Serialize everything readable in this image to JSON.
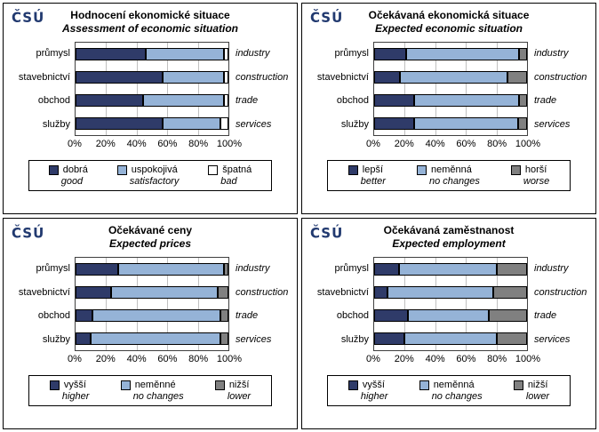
{
  "brand": "ČSÚ",
  "colors": {
    "dark_blue": "#2F3B69",
    "light_blue": "#95B3D7",
    "gray": "#808080",
    "white": "#FFFFFF",
    "gridline": "#C0C0C0",
    "logo_navy": "#223A70"
  },
  "chart_data": [
    {
      "type": "bar",
      "stacked": true,
      "orientation": "horizontal",
      "title": "Hodnocení  ekonomické situace",
      "subtitle": "Assessment of economic situation",
      "categories": [
        "průmysl",
        "stavebnictví",
        "obchod",
        "služby"
      ],
      "categories_en": [
        "industry",
        "construction",
        "trade",
        "services"
      ],
      "x_ticks": [
        "0%",
        "20%",
        "40%",
        "60%",
        "80%",
        "100%"
      ],
      "xlim": [
        0,
        100
      ],
      "series": [
        {
          "name": "dobrá",
          "name_en": "good",
          "color": "#2F3B69",
          "values": [
            46,
            57,
            44,
            57
          ]
        },
        {
          "name": "uspokojivá",
          "name_en": "satisfactory",
          "color": "#95B3D7",
          "values": [
            51,
            40,
            53,
            38
          ]
        },
        {
          "name": "špatná",
          "name_en": "bad",
          "color": "#FFFFFF",
          "values": [
            3,
            3,
            3,
            5
          ]
        }
      ]
    },
    {
      "type": "bar",
      "stacked": true,
      "orientation": "horizontal",
      "title": "Očekávaná  ekonomická situace",
      "subtitle": "Expected economic situation",
      "categories": [
        "průmysl",
        "stavebnictví",
        "obchod",
        "služby"
      ],
      "categories_en": [
        "industry",
        "construction",
        "trade",
        "services"
      ],
      "x_ticks": [
        "0%",
        "20%",
        "40%",
        "60%",
        "80%",
        "100%"
      ],
      "xlim": [
        0,
        100
      ],
      "series": [
        {
          "name": "lepší",
          "name_en": "better",
          "color": "#2F3B69",
          "values": [
            21,
            17,
            26,
            26
          ]
        },
        {
          "name": "neměnná",
          "name_en": "no changes",
          "color": "#95B3D7",
          "values": [
            74,
            70,
            69,
            68
          ]
        },
        {
          "name": "horší",
          "name_en": "worse",
          "color": "#808080",
          "values": [
            5,
            13,
            5,
            6
          ]
        }
      ]
    },
    {
      "type": "bar",
      "stacked": true,
      "orientation": "horizontal",
      "title": "Očekávané ceny",
      "subtitle": "Expected prices",
      "categories": [
        "průmysl",
        "stavebnictví",
        "obchod",
        "služby"
      ],
      "categories_en": [
        "industry",
        "construction",
        "trade",
        "services"
      ],
      "x_ticks": [
        "0%",
        "20%",
        "40%",
        "60%",
        "80%",
        "100%"
      ],
      "xlim": [
        0,
        100
      ],
      "series": [
        {
          "name": "vyšší",
          "name_en": "higher",
          "color": "#2F3B69",
          "values": [
            28,
            23,
            11,
            10
          ]
        },
        {
          "name": "neměnné",
          "name_en": "no changes",
          "color": "#95B3D7",
          "values": [
            69,
            70,
            84,
            85
          ]
        },
        {
          "name": "nižší",
          "name_en": "lower",
          "color": "#808080",
          "values": [
            3,
            7,
            5,
            5
          ]
        }
      ]
    },
    {
      "type": "bar",
      "stacked": true,
      "orientation": "horizontal",
      "title": "Očekávaná zaměstnanost",
      "subtitle": "Expected employment",
      "categories": [
        "průmysl",
        "stavebnictví",
        "obchod",
        "služby"
      ],
      "categories_en": [
        "industry",
        "construction",
        "trade",
        "services"
      ],
      "x_ticks": [
        "0%",
        "20%",
        "40%",
        "60%",
        "80%",
        "100%"
      ],
      "xlim": [
        0,
        100
      ],
      "series": [
        {
          "name": "vyšší",
          "name_en": "higher",
          "color": "#2F3B69",
          "values": [
            16,
            9,
            22,
            20
          ]
        },
        {
          "name": "neměnná",
          "name_en": "no changes",
          "color": "#95B3D7",
          "values": [
            64,
            69,
            53,
            60
          ]
        },
        {
          "name": "nižší",
          "name_en": "lower",
          "color": "#808080",
          "values": [
            20,
            22,
            25,
            20
          ]
        }
      ]
    }
  ]
}
